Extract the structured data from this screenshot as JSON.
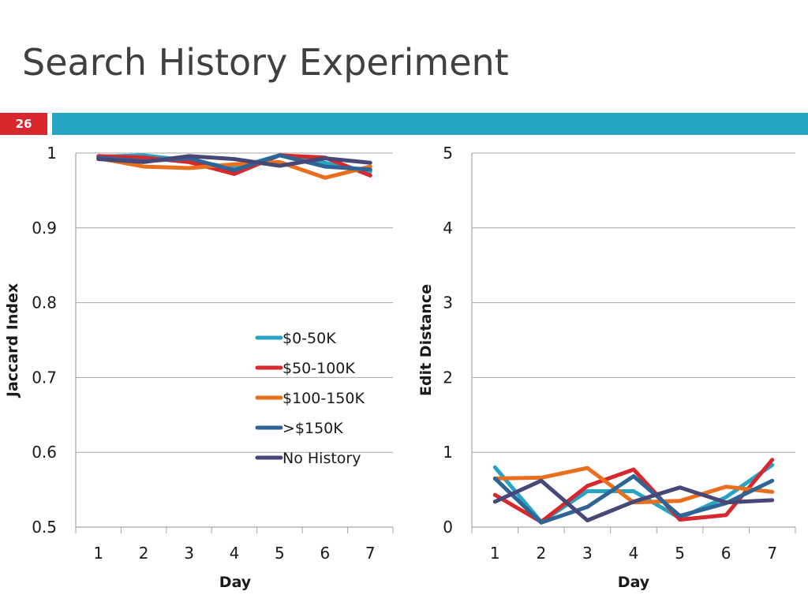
{
  "slide": {
    "title": "Search History Experiment",
    "number": "26",
    "accent_colors": {
      "number_box": "#d9272e",
      "title_bar": "#27a4c4"
    }
  },
  "chart_data": [
    {
      "type": "line",
      "title": "",
      "xlabel": "Day",
      "ylabel": "Jaccard Index",
      "ylim": [
        0.5,
        1
      ],
      "yticks": [
        "0.5",
        "0.6",
        "0.7",
        "0.8",
        "0.9",
        "1"
      ],
      "grid": true,
      "legend": "center-right",
      "x": [
        1,
        2,
        3,
        4,
        5,
        6,
        7
      ],
      "series": [
        {
          "name": "$0-50K",
          "color": "#27a4c4",
          "values": [
            0.995,
            0.997,
            0.99,
            0.98,
            0.997,
            0.987,
            0.975
          ]
        },
        {
          "name": "$50-100K",
          "color": "#d9272e",
          "values": [
            0.996,
            0.994,
            0.988,
            0.972,
            0.997,
            0.994,
            0.97
          ]
        },
        {
          "name": "$100-150K",
          "color": "#ea6f1c",
          "values": [
            0.993,
            0.982,
            0.98,
            0.985,
            0.988,
            0.967,
            0.982
          ]
        },
        {
          "name": ">$150K",
          "color": "#2f6496",
          "values": [
            0.994,
            0.989,
            0.993,
            0.977,
            0.997,
            0.982,
            0.978
          ]
        },
        {
          "name": "No History",
          "color": "#474878",
          "values": [
            0.992,
            0.988,
            0.996,
            0.992,
            0.983,
            0.993,
            0.987
          ]
        }
      ]
    },
    {
      "type": "line",
      "title": "",
      "xlabel": "Day",
      "ylabel": "Edit Distance",
      "ylim": [
        0,
        5
      ],
      "yticks": [
        "0",
        "1",
        "2",
        "3",
        "4",
        "5"
      ],
      "grid": true,
      "x": [
        1,
        2,
        3,
        4,
        5,
        6,
        7
      ],
      "series": [
        {
          "name": "$0-50K",
          "color": "#27a4c4",
          "values": [
            0.8,
            0.07,
            0.48,
            0.48,
            0.12,
            0.4,
            0.83
          ]
        },
        {
          "name": "$50-100K",
          "color": "#d9272e",
          "values": [
            0.43,
            0.07,
            0.55,
            0.77,
            0.1,
            0.16,
            0.9
          ]
        },
        {
          "name": "$100-150K",
          "color": "#ea6f1c",
          "values": [
            0.65,
            0.66,
            0.79,
            0.33,
            0.35,
            0.54,
            0.47
          ]
        },
        {
          "name": ">$150K",
          "color": "#2f6496",
          "values": [
            0.65,
            0.06,
            0.27,
            0.68,
            0.15,
            0.32,
            0.62
          ]
        },
        {
          "name": "No History",
          "color": "#474878",
          "values": [
            0.34,
            0.62,
            0.09,
            0.34,
            0.53,
            0.33,
            0.36
          ]
        }
      ]
    }
  ]
}
